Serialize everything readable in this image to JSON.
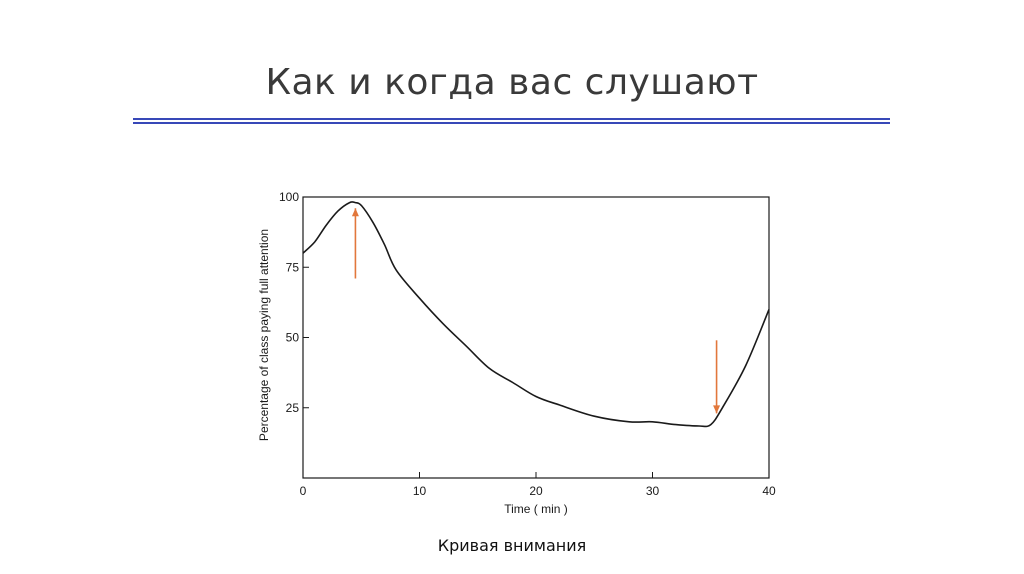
{
  "slide": {
    "title": "Как и когда вас слушают",
    "caption": "Кривая внимания",
    "rule_color": "#3848b8",
    "arrow_color": "#e2773b"
  },
  "chart_data": {
    "type": "line",
    "title": "",
    "xlabel": "Time ( min )",
    "ylabel": "Percentage of class paying full attention",
    "xlim": [
      0,
      40
    ],
    "ylim": [
      0,
      100
    ],
    "xticks": [
      "0",
      "10",
      "20",
      "30",
      "40"
    ],
    "yticks": [
      "25",
      "50",
      "75",
      "100"
    ],
    "grid": false,
    "series": [
      {
        "x": [
          0,
          1,
          2,
          3,
          4,
          4.5,
          5,
          6,
          7,
          8,
          10,
          12,
          14,
          16,
          18,
          20,
          22,
          25,
          28,
          30,
          32,
          34,
          35,
          36,
          38,
          40
        ],
        "y": [
          80,
          84,
          90,
          95,
          98,
          98,
          97,
          91,
          83,
          74,
          64,
          55,
          47,
          39,
          34,
          29,
          26,
          22,
          20,
          20,
          19,
          18.5,
          19,
          25,
          40,
          60
        ]
      }
    ],
    "annotations": [
      {
        "type": "arrow-up",
        "x": 4.5,
        "y_from": 71,
        "y_to": 96
      },
      {
        "type": "arrow-down",
        "x": 35.5,
        "y_from": 49,
        "y_to": 23
      }
    ]
  }
}
